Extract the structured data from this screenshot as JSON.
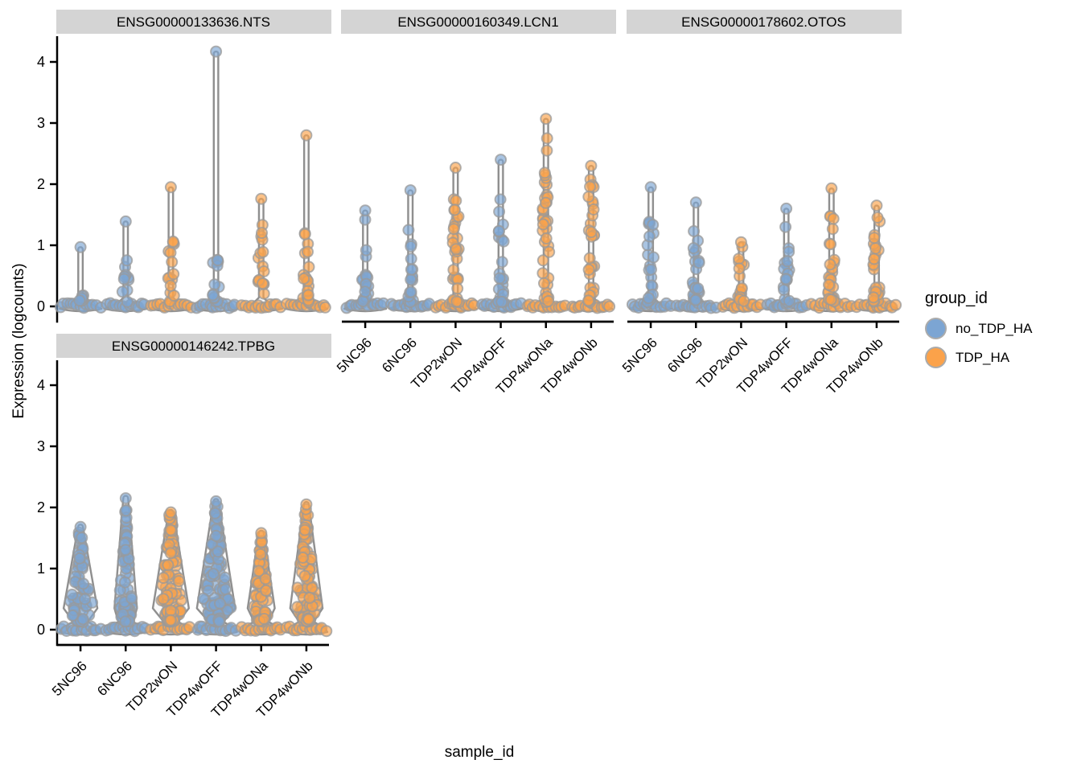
{
  "figure": {
    "x_axis_title": "sample_id",
    "y_axis_title": "Expression (logcounts)"
  },
  "legend": {
    "title": "group_id",
    "items": [
      {
        "label": "no_TDP_HA",
        "color": "#7CA5D3"
      },
      {
        "label": "TDP_HA",
        "color": "#FBA24A"
      }
    ]
  },
  "style": {
    "background": "#FFFFFF",
    "strip_bg": "#D4D4D4",
    "axis_color": "#000000",
    "text_color": "#000000",
    "violin_fill": "#FAFAFA",
    "violin_stroke": "#8F8F8F",
    "point_stroke": "#9A9A9A"
  },
  "chart_data": {
    "type": "violin",
    "subtype": "faceted violin + jittered expression points",
    "xlabel": "sample_id",
    "ylabel": "Expression (logcounts)",
    "y_ticks": [
      0,
      1,
      2,
      3,
      4
    ],
    "ylim": [
      -0.25,
      4.4
    ],
    "categories": [
      "5NC96",
      "6NC96",
      "TDP2wON",
      "TDP4wOFF",
      "TDP4wONa",
      "TDP4wONb"
    ],
    "group_of_category": [
      "no_TDP_HA",
      "no_TDP_HA",
      "TDP_HA",
      "no_TDP_HA",
      "TDP_HA",
      "TDP_HA"
    ],
    "legend_position": "right",
    "facets": [
      {
        "title": "ENSG00000133636.NTS",
        "row": 0,
        "col": 0,
        "x_axis": false,
        "violins": [
          {
            "sample": "5NC96",
            "group": "no_TDP_HA",
            "shape": "spike",
            "max": 0.97,
            "cluster_max": 0.55,
            "n_stem": 6,
            "extra": []
          },
          {
            "sample": "6NC96",
            "group": "no_TDP_HA",
            "shape": "spike",
            "max": 1.39,
            "cluster_max": 0.9,
            "n_stem": 10,
            "extra": []
          },
          {
            "sample": "TDP2wON",
            "group": "TDP_HA",
            "shape": "spike",
            "max": 1.95,
            "cluster_max": 1.2,
            "n_stem": 14,
            "extra": []
          },
          {
            "sample": "TDP4wOFF",
            "group": "no_TDP_HA",
            "shape": "spike",
            "max": 4.17,
            "cluster_max": 0.9,
            "n_stem": 13,
            "extra": []
          },
          {
            "sample": "TDP4wONa",
            "group": "TDP_HA",
            "shape": "spike",
            "max": 1.76,
            "cluster_max": 1.35,
            "n_stem": 16,
            "extra": []
          },
          {
            "sample": "TDP4wONb",
            "group": "TDP_HA",
            "shape": "spike",
            "max": 2.8,
            "cluster_max": 1.45,
            "n_stem": 18,
            "extra": [
              1.18
            ]
          }
        ]
      },
      {
        "title": "ENSG00000160349.LCN1",
        "row": 0,
        "col": 1,
        "x_axis": true,
        "violins": [
          {
            "sample": "5NC96",
            "group": "no_TDP_HA",
            "shape": "spike",
            "max": 1.57,
            "cluster_max": 1.0,
            "n_stem": 16,
            "extra": [
              1.42
            ]
          },
          {
            "sample": "6NC96",
            "group": "no_TDP_HA",
            "shape": "spike",
            "max": 1.9,
            "cluster_max": 1.05,
            "n_stem": 16,
            "extra": [
              1.25
            ]
          },
          {
            "sample": "TDP2wON",
            "group": "TDP_HA",
            "shape": "spike",
            "max": 2.27,
            "cluster_max": 1.95,
            "n_stem": 30,
            "extra": []
          },
          {
            "sample": "TDP4wOFF",
            "group": "no_TDP_HA",
            "shape": "spike",
            "max": 2.4,
            "cluster_max": 1.35,
            "n_stem": 20,
            "extra": [
              1.55,
              1.75
            ]
          },
          {
            "sample": "TDP4wONa",
            "group": "TDP_HA",
            "shape": "spike",
            "max": 3.07,
            "cluster_max": 2.35,
            "n_stem": 34,
            "extra": [
              2.55,
              2.75
            ]
          },
          {
            "sample": "TDP4wONb",
            "group": "TDP_HA",
            "shape": "spike",
            "max": 2.3,
            "cluster_max": 2.1,
            "n_stem": 30,
            "extra": []
          }
        ]
      },
      {
        "title": "ENSG00000178602.OTOS",
        "row": 0,
        "col": 2,
        "x_axis": true,
        "violins": [
          {
            "sample": "5NC96",
            "group": "no_TDP_HA",
            "shape": "spike",
            "max": 1.95,
            "cluster_max": 1.4,
            "n_stem": 20,
            "extra": []
          },
          {
            "sample": "6NC96",
            "group": "no_TDP_HA",
            "shape": "spike",
            "max": 1.7,
            "cluster_max": 1.3,
            "n_stem": 22,
            "extra": []
          },
          {
            "sample": "TDP2wON",
            "group": "TDP_HA",
            "shape": "spike",
            "max": 1.05,
            "cluster_max": 1.0,
            "n_stem": 16,
            "extra": []
          },
          {
            "sample": "TDP4wOFF",
            "group": "no_TDP_HA",
            "shape": "spike",
            "max": 1.6,
            "cluster_max": 1.05,
            "n_stem": 16,
            "extra": [
              1.3
            ]
          },
          {
            "sample": "TDP4wONa",
            "group": "TDP_HA",
            "shape": "spike",
            "max": 1.93,
            "cluster_max": 1.5,
            "n_stem": 26,
            "extra": []
          },
          {
            "sample": "TDP4wONb",
            "group": "TDP_HA",
            "shape": "spike",
            "max": 1.65,
            "cluster_max": 1.5,
            "n_stem": 26,
            "extra": []
          }
        ]
      },
      {
        "title": "ENSG00000146242.TPBG",
        "row": 1,
        "col": 0,
        "x_axis": true,
        "violins": [
          {
            "sample": "5NC96",
            "group": "no_TDP_HA",
            "shape": "cone",
            "max": 1.68,
            "n_points": 70,
            "cone_w": 0.75
          },
          {
            "sample": "6NC96",
            "group": "no_TDP_HA",
            "shape": "cone",
            "max": 2.15,
            "n_points": 70,
            "cone_w": 0.5
          },
          {
            "sample": "TDP2wON",
            "group": "TDP_HA",
            "shape": "cone",
            "max": 1.92,
            "n_points": 100,
            "cone_w": 0.8
          },
          {
            "sample": "TDP4wOFF",
            "group": "no_TDP_HA",
            "shape": "cone",
            "max": 2.1,
            "n_points": 120,
            "cone_w": 0.85
          },
          {
            "sample": "TDP4wONa",
            "group": "TDP_HA",
            "shape": "cone",
            "max": 1.58,
            "n_points": 80,
            "cone_w": 0.6
          },
          {
            "sample": "TDP4wONb",
            "group": "TDP_HA",
            "shape": "cone",
            "max": 2.05,
            "n_points": 100,
            "cone_w": 0.72
          }
        ]
      }
    ]
  }
}
